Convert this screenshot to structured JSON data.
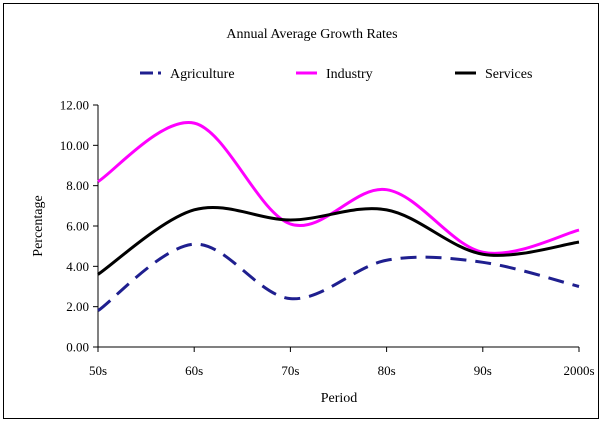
{
  "chart_data": {
    "type": "line",
    "title": "Annual Average Growth Rates",
    "xlabel": "Period",
    "ylabel": "Percentage",
    "categories": [
      "50s",
      "60s",
      "70s",
      "80s",
      "90s",
      "2000s"
    ],
    "ylim": [
      0,
      12
    ],
    "yticks": [
      "0.00",
      "2.00",
      "4.00",
      "6.00",
      "8.00",
      "10.00",
      "12.00"
    ],
    "yticks_values": [
      0,
      2,
      4,
      6,
      8,
      10,
      12
    ],
    "legend_position": "top",
    "grid": false,
    "smooth": true,
    "series": [
      {
        "name": "Agriculture",
        "values": [
          1.8,
          5.1,
          2.4,
          4.3,
          4.2,
          3.0
        ],
        "color": "#1f1f8f",
        "dash": "dashed"
      },
      {
        "name": "Industry",
        "values": [
          8.2,
          11.1,
          6.1,
          7.8,
          4.7,
          5.8
        ],
        "color": "#ff00ff",
        "dash": "solid"
      },
      {
        "name": "Services",
        "values": [
          3.6,
          6.8,
          6.3,
          6.8,
          4.6,
          5.2
        ],
        "color": "#000000",
        "dash": "solid"
      }
    ]
  }
}
